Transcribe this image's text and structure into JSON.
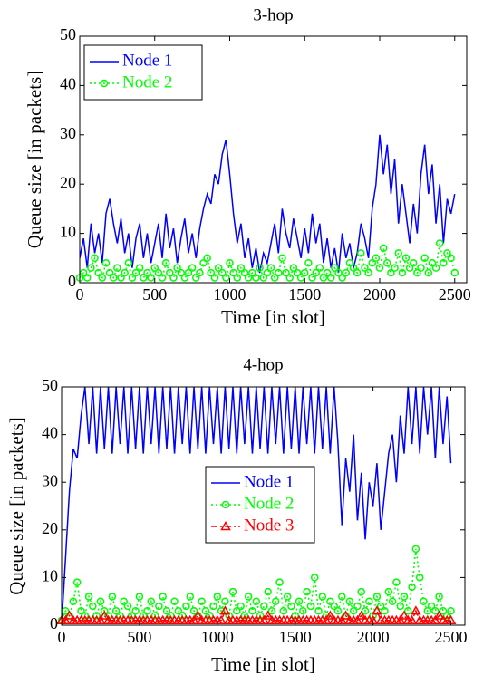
{
  "chart_data": [
    {
      "type": "line",
      "title": "3-hop",
      "x_label": "Time [in slot]",
      "y_label": "Queue size [in packets]",
      "x": [
        0,
        25,
        50,
        75,
        100,
        125,
        150,
        175,
        200,
        225,
        250,
        275,
        300,
        325,
        350,
        375,
        400,
        425,
        450,
        475,
        500,
        525,
        550,
        575,
        600,
        625,
        650,
        675,
        700,
        725,
        750,
        775,
        800,
        825,
        850,
        875,
        900,
        925,
        950,
        975,
        1000,
        1025,
        1050,
        1075,
        1100,
        1125,
        1150,
        1175,
        1200,
        1225,
        1250,
        1275,
        1300,
        1325,
        1350,
        1375,
        1400,
        1425,
        1450,
        1475,
        1500,
        1525,
        1550,
        1575,
        1600,
        1625,
        1650,
        1675,
        1700,
        1725,
        1750,
        1775,
        1800,
        1825,
        1850,
        1875,
        1900,
        1925,
        1950,
        1975,
        2000,
        2025,
        2050,
        2075,
        2100,
        2125,
        2150,
        2175,
        2200,
        2225,
        2250,
        2275,
        2300,
        2325,
        2350,
        2375,
        2400,
        2425,
        2450,
        2475,
        2500
      ],
      "series": [
        {
          "name": "Node 1",
          "color": "#0000ff",
          "marker": "none",
          "dash": "solid",
          "values": [
            5,
            9,
            3,
            12,
            6,
            10,
            4,
            14,
            17,
            12,
            8,
            13,
            6,
            10,
            3,
            9,
            12,
            5,
            10,
            4,
            8,
            12,
            5,
            14,
            7,
            11,
            4,
            9,
            13,
            6,
            10,
            5,
            11,
            15,
            18,
            16,
            22,
            20,
            26,
            29,
            22,
            14,
            8,
            12,
            5,
            9,
            3,
            7,
            2,
            6,
            4,
            8,
            12,
            6,
            15,
            10,
            7,
            13,
            9,
            5,
            11,
            6,
            14,
            8,
            12,
            4,
            9,
            3,
            7,
            2,
            10,
            5,
            8,
            3,
            6,
            12,
            9,
            5,
            15,
            20,
            30,
            22,
            28,
            18,
            25,
            12,
            20,
            14,
            8,
            16,
            10,
            22,
            28,
            18,
            24,
            12,
            20,
            8,
            17,
            14,
            18
          ]
        },
        {
          "name": "Node 2",
          "color": "#00ff00",
          "marker": "circle",
          "dash": "dotted",
          "values": [
            1,
            2,
            1,
            3,
            5,
            2,
            1,
            4,
            2,
            1,
            3,
            1,
            2,
            4,
            1,
            2,
            3,
            1,
            2,
            1,
            3,
            2,
            1,
            4,
            2,
            1,
            3,
            2,
            1,
            2,
            3,
            1,
            2,
            4,
            5,
            2,
            1,
            3,
            2,
            1,
            4,
            2,
            1,
            3,
            2,
            1,
            2,
            1,
            3,
            1,
            2,
            3,
            1,
            2,
            5,
            2,
            1,
            3,
            2,
            1,
            2,
            4,
            1,
            2,
            3,
            1,
            2,
            1,
            3,
            2,
            1,
            2,
            4,
            3,
            2,
            6,
            3,
            2,
            4,
            5,
            3,
            7,
            4,
            2,
            3,
            6,
            2,
            5,
            3,
            4,
            2,
            3,
            5,
            2,
            4,
            3,
            8,
            4,
            6,
            5,
            2
          ]
        }
      ],
      "xlim": [
        0,
        2580
      ],
      "ylim": [
        0,
        50
      ],
      "xticks": [
        0,
        500,
        1000,
        1500,
        2000,
        2500
      ],
      "yticks": [
        0,
        10,
        20,
        30,
        40,
        50
      ],
      "legend": "upper left"
    },
    {
      "type": "line",
      "title": "4-hop",
      "x_label": "Time [in slot]",
      "y_label": "Queue size [in packets]",
      "x": [
        0,
        25,
        50,
        75,
        100,
        125,
        150,
        175,
        200,
        225,
        250,
        275,
        300,
        325,
        350,
        375,
        400,
        425,
        450,
        475,
        500,
        525,
        550,
        575,
        600,
        625,
        650,
        675,
        700,
        725,
        750,
        775,
        800,
        825,
        850,
        875,
        900,
        925,
        950,
        975,
        1000,
        1025,
        1050,
        1075,
        1100,
        1125,
        1150,
        1175,
        1200,
        1225,
        1250,
        1275,
        1300,
        1325,
        1350,
        1375,
        1400,
        1425,
        1450,
        1475,
        1500,
        1525,
        1550,
        1575,
        1600,
        1625,
        1650,
        1675,
        1700,
        1725,
        1750,
        1775,
        1800,
        1825,
        1850,
        1875,
        1900,
        1925,
        1950,
        1975,
        2000,
        2025,
        2050,
        2075,
        2100,
        2125,
        2150,
        2175,
        2200,
        2225,
        2250,
        2275,
        2300,
        2325,
        2350,
        2375,
        2400,
        2425,
        2450,
        2475,
        2500
      ],
      "series": [
        {
          "name": "Node 1",
          "color": "#0000ff",
          "marker": "none",
          "dash": "solid",
          "values": [
            0,
            14,
            28,
            37,
            35,
            44,
            50,
            38,
            50,
            36,
            50,
            37,
            50,
            36,
            50,
            38,
            50,
            36,
            50,
            37,
            50,
            36,
            50,
            38,
            50,
            36,
            50,
            37,
            50,
            36,
            50,
            38,
            50,
            36,
            50,
            37,
            50,
            36,
            50,
            38,
            50,
            36,
            50,
            37,
            50,
            36,
            50,
            38,
            50,
            36,
            50,
            37,
            50,
            36,
            50,
            38,
            50,
            36,
            50,
            37,
            50,
            36,
            50,
            38,
            50,
            36,
            50,
            37,
            50,
            36,
            50,
            38,
            21,
            35,
            28,
            40,
            22,
            32,
            18,
            30,
            25,
            34,
            20,
            28,
            36,
            40,
            30,
            44,
            36,
            50,
            38,
            50,
            36,
            50,
            40,
            50,
            35,
            50,
            38,
            48,
            34
          ]
        },
        {
          "name": "Node 2",
          "color": "#00ff00",
          "marker": "circle",
          "dash": "dotted",
          "values": [
            1,
            3,
            2,
            5,
            9,
            3,
            2,
            6,
            4,
            2,
            5,
            3,
            2,
            6,
            3,
            2,
            5,
            4,
            2,
            3,
            6,
            2,
            3,
            5,
            2,
            4,
            6,
            3,
            2,
            5,
            3,
            2,
            4,
            6,
            3,
            2,
            5,
            3,
            2,
            4,
            6,
            3,
            5,
            2,
            7,
            3,
            4,
            2,
            6,
            3,
            5,
            2,
            4,
            7,
            3,
            5,
            9,
            3,
            6,
            4,
            2,
            5,
            3,
            7,
            4,
            10,
            3,
            6,
            2,
            5,
            4,
            3,
            6,
            2,
            5,
            3,
            4,
            7,
            3,
            5,
            2,
            6,
            4,
            3,
            7,
            5,
            9,
            4,
            6,
            3,
            8,
            16,
            10,
            5,
            3,
            4,
            3,
            6,
            3,
            2,
            3
          ]
        },
        {
          "name": "Node 3",
          "color": "#ff0000",
          "marker": "triangle",
          "dash": "dashdot",
          "values": [
            1,
            1,
            2,
            1,
            1,
            1,
            1,
            1,
            1,
            1,
            1,
            2,
            1,
            1,
            1,
            1,
            1,
            1,
            1,
            1,
            1,
            1,
            1,
            1,
            1,
            1,
            1,
            1,
            1,
            1,
            1,
            1,
            1,
            1,
            1,
            2,
            1,
            1,
            1,
            1,
            1,
            1,
            3,
            1,
            1,
            1,
            1,
            1,
            1,
            1,
            1,
            1,
            1,
            2,
            1,
            1,
            1,
            1,
            1,
            1,
            1,
            1,
            1,
            1,
            1,
            1,
            1,
            1,
            1,
            2,
            1,
            1,
            1,
            2,
            1,
            1,
            1,
            2,
            1,
            1,
            1,
            3,
            1,
            1,
            1,
            1,
            1,
            1,
            2,
            1,
            1,
            3,
            1,
            1,
            1,
            1,
            1,
            2,
            1,
            1,
            1
          ]
        }
      ],
      "xlim": [
        0,
        2590
      ],
      "ylim": [
        0,
        50
      ],
      "xticks": [
        0,
        500,
        1000,
        1500,
        2000,
        2500
      ],
      "yticks": [
        0,
        10,
        20,
        30,
        40,
        50
      ],
      "legend": "center"
    }
  ]
}
